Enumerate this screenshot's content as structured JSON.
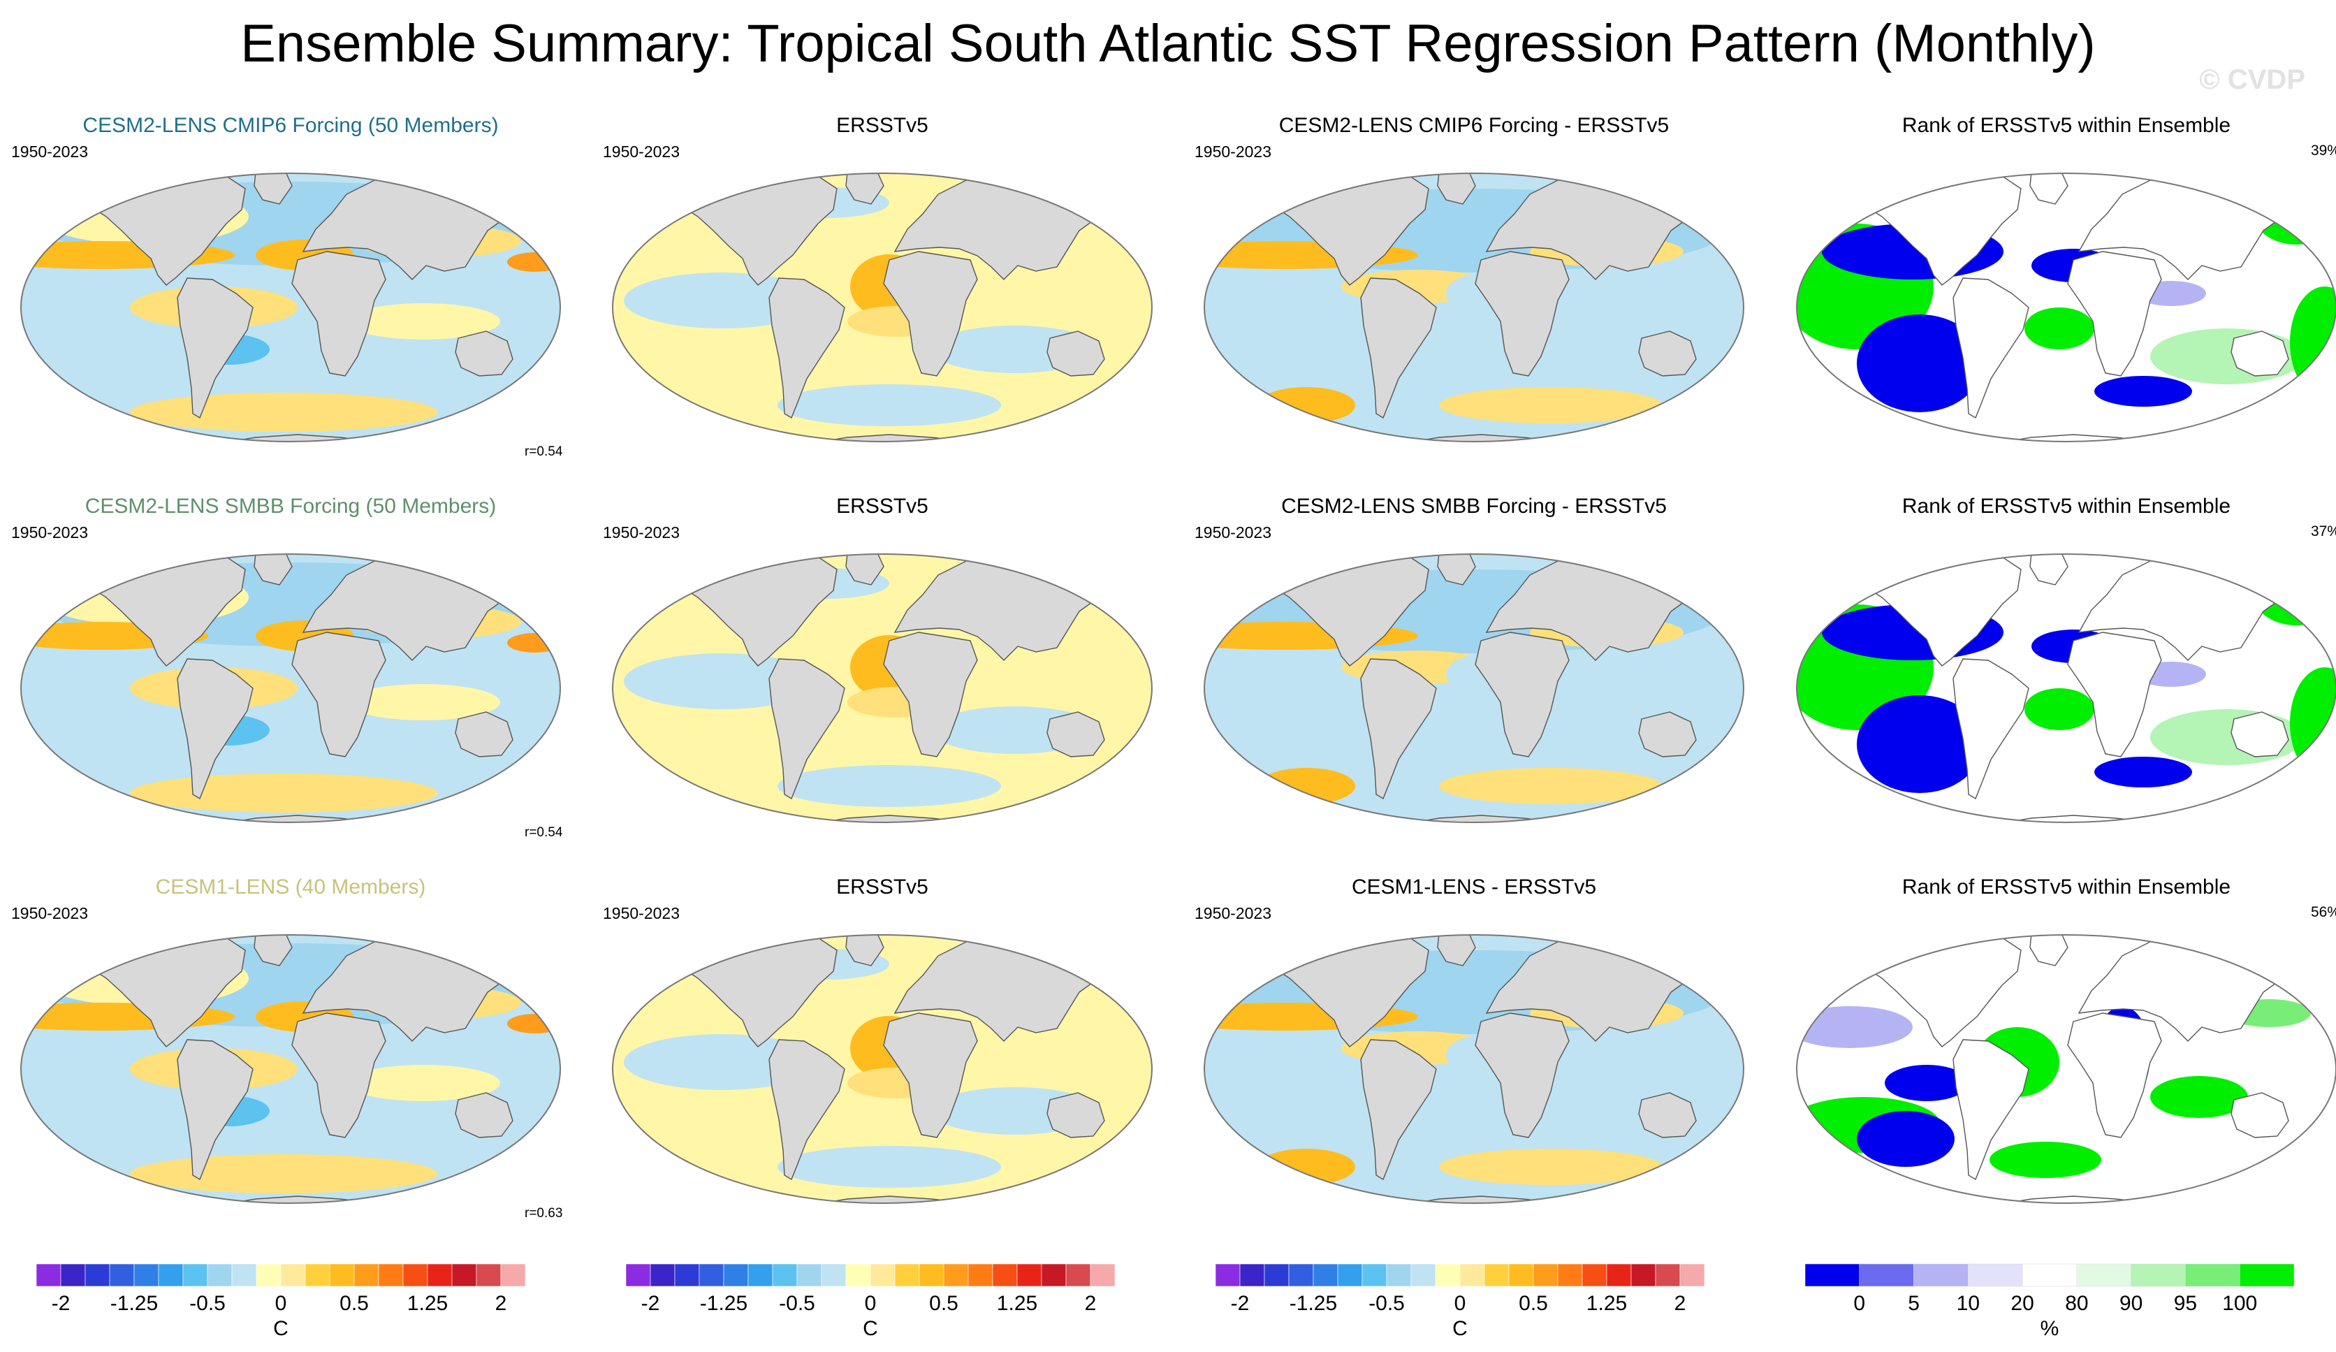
{
  "title": "Ensemble Summary: Tropical South Atlantic SST Regression Pattern (Monthly)",
  "watermark": "© CVDP",
  "period": "1950-2023",
  "rows": [
    {
      "model": "CESM2-LENS CMIP6 Forcing (50 Members)",
      "model_color": "#1f6f8b",
      "obs": "ERSSTv5",
      "diff": "CESM2-LENS CMIP6 Forcing - ERSSTv5",
      "rank": "Rank of ERSSTv5 within Ensemble",
      "r": "r=0.54",
      "rank_pct": "39%"
    },
    {
      "model": "CESM2-LENS SMBB Forcing (50 Members)",
      "model_color": "#5f8f6a",
      "obs": "ERSSTv5",
      "diff": "CESM2-LENS SMBB Forcing - ERSSTv5",
      "rank": "Rank of ERSSTv5 within Ensemble",
      "r": "r=0.54",
      "rank_pct": "37%"
    },
    {
      "model": "CESM1-LENS (40 Members)",
      "model_color": "#c9c27a",
      "obs": "ERSSTv5",
      "diff": "CESM1-LENS - ERSSTv5",
      "rank": "Rank of ERSSTv5 within Ensemble",
      "r": "r=0.63",
      "rank_pct": "56%"
    }
  ],
  "chart_data": {
    "type": "heatmap",
    "title": "Ensemble Summary: Tropical South Atlantic SST Regression Pattern (Monthly)",
    "projection": "Robinson (global)",
    "period": "1950-2023",
    "sst_colorbar": {
      "unit": "C",
      "levels": [
        -2,
        -1.75,
        -1.5,
        -1.25,
        -1,
        -0.75,
        -0.5,
        -0.25,
        -0.1,
        0,
        0.1,
        0.25,
        0.5,
        0.75,
        1,
        1.25,
        1.5,
        1.75,
        2
      ],
      "tick_labels": [
        "-2",
        "-1.25",
        "-0.5",
        "0",
        "0.5",
        "1.25",
        "2"
      ],
      "colors": [
        "#8b2be2",
        "#3b24c8",
        "#2c3bd6",
        "#3060e0",
        "#2f7fe6",
        "#32a0ec",
        "#5cc2ef",
        "#9fd5ef",
        "#bfe3f2",
        "#fffeb5",
        "#ffe99a",
        "#ffd03b",
        "#ffbc1e",
        "#ff9c1b",
        "#ff7c15",
        "#f74e14",
        "#e82419",
        "#c71825",
        "#d84a4e",
        "#f6a9aa"
      ]
    },
    "rank_colorbar": {
      "unit": "%",
      "levels": [
        0,
        5,
        10,
        20,
        80,
        90,
        95,
        100
      ],
      "tick_labels": [
        "0",
        "5",
        "10",
        "20",
        "80",
        "90",
        "95",
        "100"
      ],
      "colors": [
        "#0000ee",
        "#6b6bf0",
        "#b4b4f4",
        "#e2e2fa",
        "#ffffff",
        "#e2fae2",
        "#b4f4b4",
        "#78ee78",
        "#00ee00"
      ]
    },
    "panels": [
      {
        "row": 1,
        "column": "model",
        "title": "CESM2-LENS CMIP6 Forcing (50 Members)",
        "pattern_correlation": 0.54
      },
      {
        "row": 1,
        "column": "observation",
        "title": "ERSSTv5"
      },
      {
        "row": 1,
        "column": "difference",
        "title": "CESM2-LENS CMIP6 Forcing - ERSSTv5"
      },
      {
        "row": 1,
        "column": "rank",
        "title": "Rank of ERSSTv5 within Ensemble",
        "rank_percent": 39
      },
      {
        "row": 2,
        "column": "model",
        "title": "CESM2-LENS SMBB Forcing (50 Members)",
        "pattern_correlation": 0.54
      },
      {
        "row": 2,
        "column": "observation",
        "title": "ERSSTv5"
      },
      {
        "row": 2,
        "column": "difference",
        "title": "CESM2-LENS SMBB Forcing - ERSSTv5"
      },
      {
        "row": 2,
        "column": "rank",
        "title": "Rank of ERSSTv5 within Ensemble",
        "rank_percent": 37
      },
      {
        "row": 3,
        "column": "model",
        "title": "CESM1-LENS (40 Members)",
        "pattern_correlation": 0.63
      },
      {
        "row": 3,
        "column": "observation",
        "title": "ERSSTv5"
      },
      {
        "row": 3,
        "column": "difference",
        "title": "CESM1-LENS - ERSSTv5"
      },
      {
        "row": 3,
        "column": "rank",
        "title": "Rank of ERSSTv5 within Ensemble",
        "rank_percent": 56
      }
    ]
  }
}
